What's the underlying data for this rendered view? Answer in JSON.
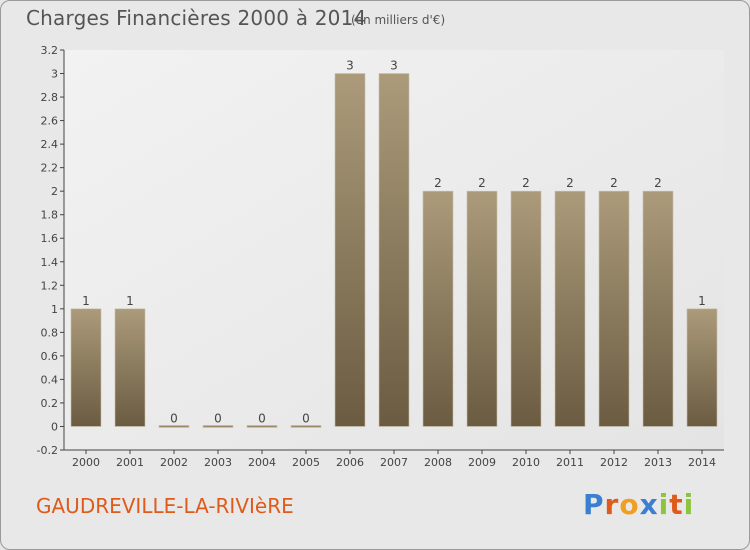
{
  "header": {
    "title": "Charges Financières 2000 à 2014",
    "subtitle": "(en milliers d'€)"
  },
  "footer": {
    "commune": "GAUDREVILLE-LA-RIVIèRE",
    "logo": "Proxiti"
  },
  "colors": {
    "background": "#e8e8e8",
    "bar_light": "#a89878",
    "bar_dark": "#6e5e44",
    "commune_text": "#e05a1a",
    "logo_letters": [
      "#3a7fd0",
      "#e05a1a",
      "#f0a020",
      "#3a7fd0",
      "#8cc43c",
      "#e05a1a",
      "#8cc43c"
    ]
  },
  "chart_data": {
    "type": "bar",
    "title": "Charges Financières 2000 à 2014",
    "subtitle": "(en milliers d'€)",
    "categories": [
      "2000",
      "2001",
      "2002",
      "2003",
      "2004",
      "2005",
      "2006",
      "2007",
      "2008",
      "2009",
      "2010",
      "2011",
      "2012",
      "2013",
      "2014"
    ],
    "values": [
      1,
      1,
      0,
      0,
      0,
      0,
      3,
      3,
      2,
      2,
      2,
      2,
      2,
      2,
      1
    ],
    "data_labels": [
      "1",
      "1",
      "0",
      "0",
      "0",
      "0",
      "3",
      "3",
      "2",
      "2",
      "2",
      "2",
      "2",
      "2",
      "1"
    ],
    "ylim": [
      -0.2,
      3.2
    ],
    "yticks": [
      -0.2,
      0,
      0.2,
      0.4,
      0.6,
      0.8,
      1,
      1.2,
      1.4,
      1.6,
      1.8,
      2,
      2.2,
      2.4,
      2.6,
      2.8,
      3,
      3.2
    ],
    "ytick_labels": [
      "-0.2",
      "0",
      "0.2",
      "0.4",
      "0.6",
      "0.8",
      "1",
      "1.2",
      "1.4",
      "1.6",
      "1.8",
      "2",
      "2.2",
      "2.4",
      "2.6",
      "2.8",
      "3",
      "3.2"
    ],
    "xlabel": "",
    "ylabel": "",
    "grid": false,
    "legend": false
  }
}
